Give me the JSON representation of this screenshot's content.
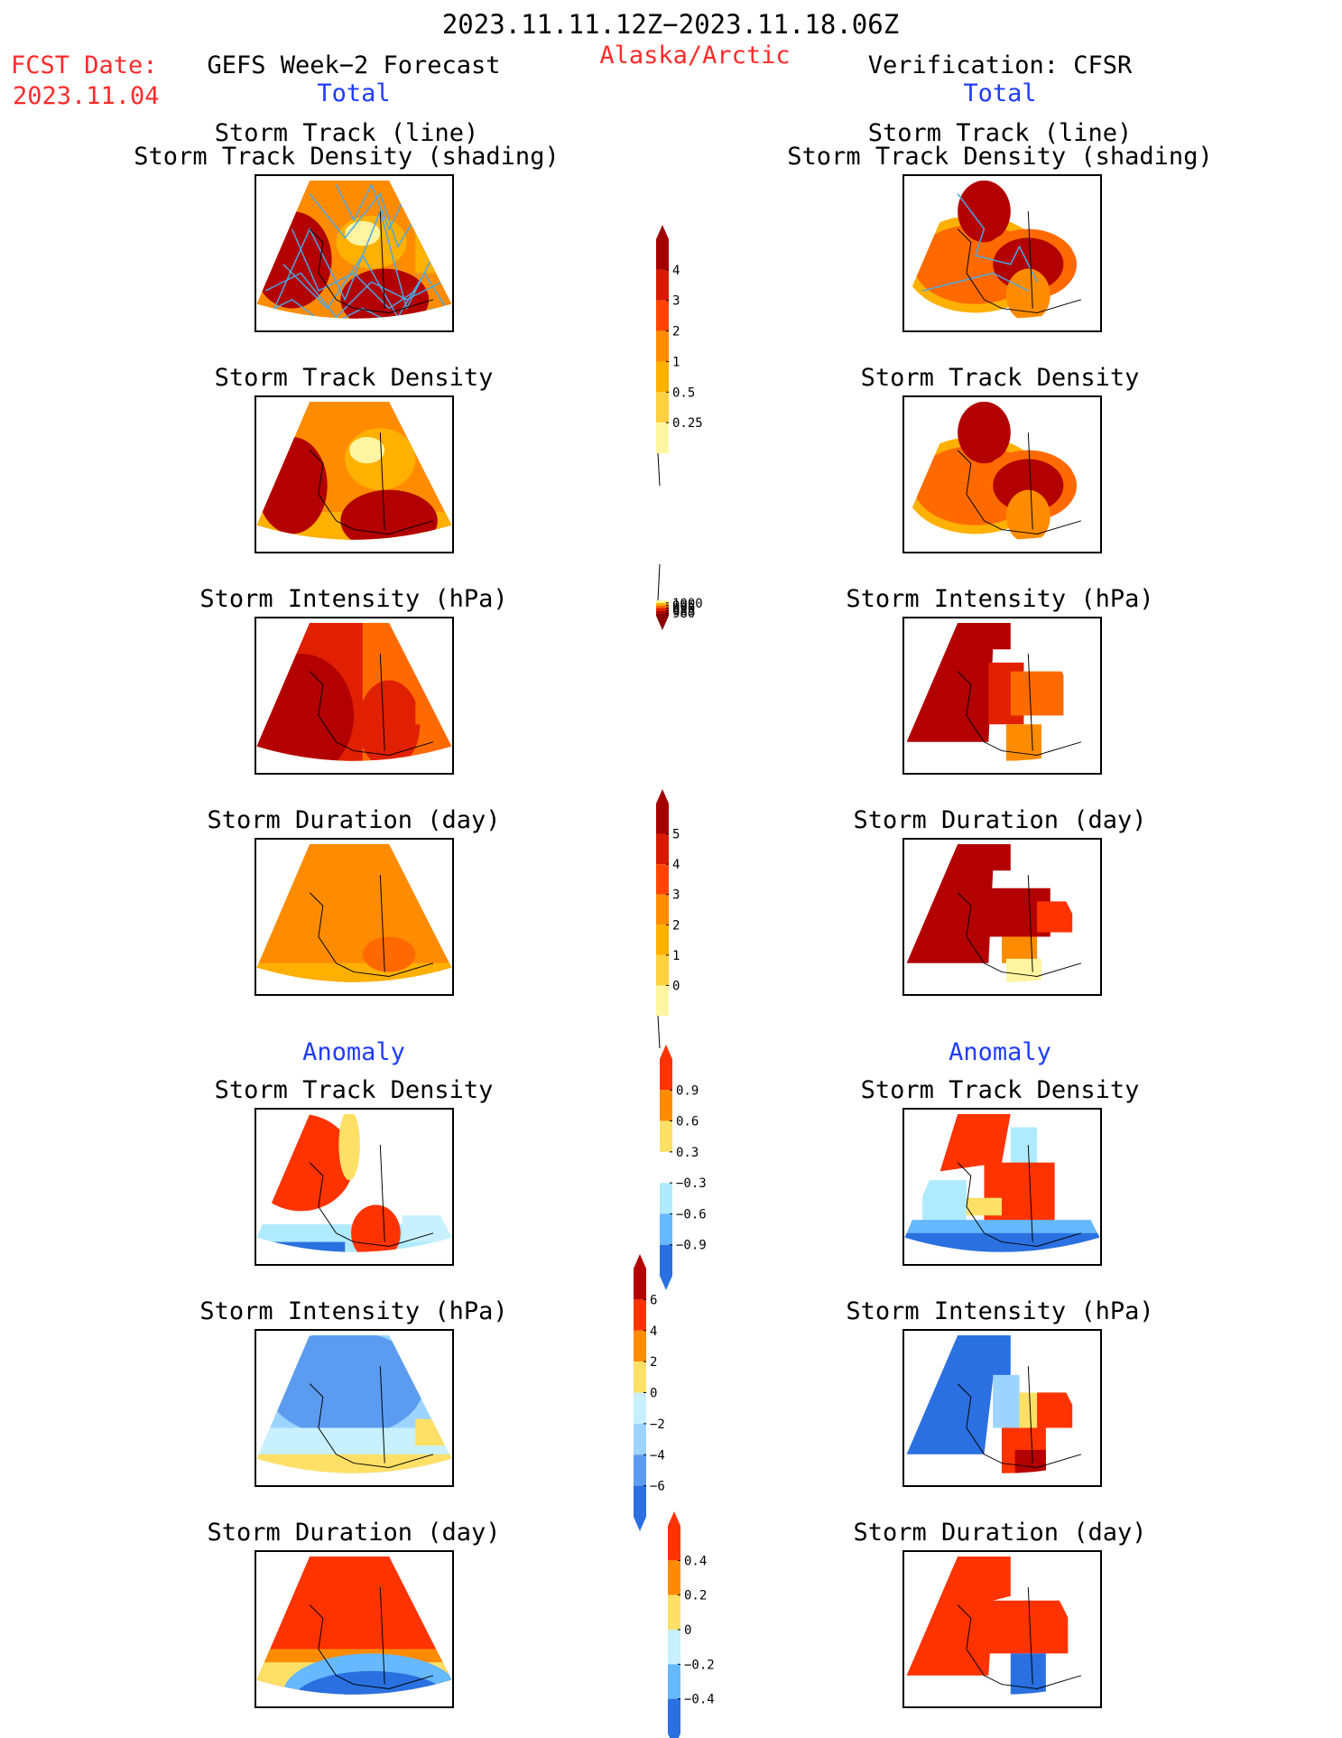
{
  "header": {
    "period": "2023.11.11.12Z−2023.11.18.06Z",
    "region": "Alaska/Arctic",
    "fcst_label": "FCST Date:",
    "fcst_date": "2023.11.04",
    "left_title": "GEFS Week−2 Forecast",
    "right_title": "Verification: CFSR",
    "left_subtitle": "Total",
    "right_subtitle": "Total",
    "anomaly_left": "Anomaly",
    "anomaly_right": "Anomaly"
  },
  "panel_titles": {
    "track_line": "Storm Track (line)",
    "track_shading": "Storm Track Density (shading)",
    "density": "Storm Track Density",
    "intensity": "Storm Intensity (hPa)",
    "duration": "Storm Duration (day)"
  },
  "colorbars": [
    {
      "name": "density-total",
      "labels": [
        "4",
        "3",
        "2",
        "1",
        "0.5",
        "0.25"
      ],
      "colors": [
        "#a50000",
        "#d81a00",
        "#ff4500",
        "#ff8c00",
        "#ffb000",
        "#ffd040",
        "#fff5a0"
      ]
    },
    {
      "name": "intensity-total",
      "labels": [
        "1000",
        "995",
        "990",
        "985",
        "980"
      ],
      "colors": [
        "#fff5a0",
        "#ffb000",
        "#ff6a00",
        "#e02000",
        "#b30000",
        "#8a0000"
      ]
    },
    {
      "name": "duration-total",
      "labels": [
        "5",
        "4",
        "3",
        "2",
        "1",
        "0"
      ],
      "colors": [
        "#a50000",
        "#d81a00",
        "#ff4500",
        "#ff8c00",
        "#ffb000",
        "#ffd040",
        "#fff5a0"
      ]
    },
    {
      "name": "density-anom",
      "labels": [
        "0.9",
        "0.6",
        "0.3",
        "−0.3",
        "−0.6",
        "−0.9"
      ],
      "colors": [
        "#ff3300",
        "#ff8c00",
        "#ffe066",
        "#ffffff",
        "#b0eaff",
        "#66b8ff",
        "#2a70e0"
      ]
    },
    {
      "name": "intensity-anom",
      "labels": [
        "6",
        "4",
        "2",
        "0",
        "−2",
        "−4",
        "−6"
      ],
      "colors": [
        "#b30000",
        "#ff3300",
        "#ff8c00",
        "#ffe066",
        "#c8f0ff",
        "#9cd4ff",
        "#5c9cf0",
        "#2a70e0"
      ]
    },
    {
      "name": "duration-anom",
      "labels": [
        "0.4",
        "0.2",
        "0",
        "−0.2",
        "−0.4"
      ],
      "colors": [
        "#ff3300",
        "#ff8c00",
        "#ffe066",
        "#c8f0ff",
        "#66b8ff",
        "#2a70e0"
      ]
    }
  ]
}
